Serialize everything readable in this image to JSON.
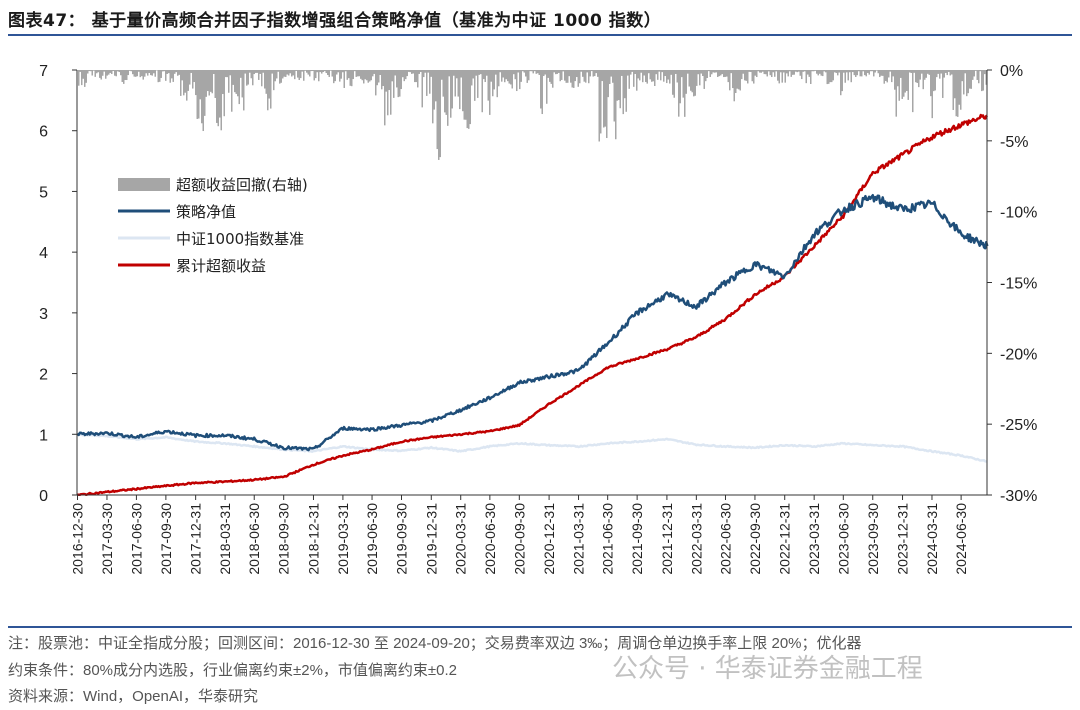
{
  "header": {
    "title": "图表47：  基于量价高频合并因子指数增强组合策略净值（基准为中证 1000 指数）"
  },
  "notes": {
    "line1": "注：股票池：中证全指成分股；回测区间：2016-12-30 至 2024-09-20；交易费率双边 3‰；周调仓单边换手率上限 20%；优化器",
    "line2": "约束条件：80%成分内选股，行业偏离约束±2%，市值偏离约束±0.2",
    "source": "资料来源：Wind，OpenAI，华泰研究",
    "watermark": "公众号 · 华泰证券金融工程"
  },
  "chart_data": {
    "type": "line",
    "title": "",
    "grid": false,
    "legend_position": "left",
    "y_left": {
      "range": [
        0,
        7
      ],
      "ticks": [
        "0",
        "1",
        "2",
        "3",
        "4",
        "5",
        "6",
        "7"
      ]
    },
    "y_right": {
      "range": [
        -30,
        0
      ],
      "unit": "%",
      "ticks": [
        "0%",
        "-5%",
        "-10%",
        "-15%",
        "-20%",
        "-25%",
        "-30%"
      ]
    },
    "x_ticks": [
      "2016-12-30",
      "2017-03-30",
      "2017-06-30",
      "2017-09-30",
      "2017-12-31",
      "2018-03-31",
      "2018-06-30",
      "2018-09-30",
      "2018-12-31",
      "2019-03-31",
      "2019-06-30",
      "2019-09-30",
      "2019-12-31",
      "2020-03-31",
      "2020-06-30",
      "2020-09-30",
      "2020-12-31",
      "2021-03-31",
      "2021-06-30",
      "2021-09-30",
      "2021-12-31",
      "2022-03-31",
      "2022-06-30",
      "2022-09-30",
      "2022-12-31",
      "2023-03-31",
      "2023-06-30",
      "2023-09-30",
      "2023-12-31",
      "2024-03-31",
      "2024-06-30"
    ],
    "x_end": "2024-09-20",
    "series": [
      {
        "name": "超额收益回撤(右轴)",
        "type": "area",
        "axis": "right",
        "color": "#a6a6a6",
        "frequency": "monthly",
        "start": "2017-01",
        "values": [
          -1.5,
          -0.5,
          -0.8,
          -0.5,
          -1,
          -0.5,
          -0.8,
          -0.5,
          -1,
          -1.5,
          -2.5,
          -2.5,
          -4.5,
          -2,
          -4.5,
          -3,
          -3,
          -1.5,
          -1.5,
          -3,
          -1,
          -0.5,
          -0.8,
          -0.5,
          -1,
          -0.5,
          -1,
          -1.5,
          -1,
          -1,
          -2,
          -4.5,
          -2,
          -1,
          -1.5,
          -3,
          -6.5,
          -4,
          -3,
          -4.5,
          -3,
          -5,
          -2,
          -1,
          -1.5,
          -1,
          -0.5,
          -3.5,
          -1.5,
          -1,
          -1.5,
          -1,
          -0.5,
          -5.5,
          -5,
          -3.5,
          -2,
          -1,
          -1.5,
          -1,
          -2,
          -3.5,
          -2,
          -1.5,
          -1,
          -0.5,
          -2.5,
          -1.5,
          -1,
          -1,
          -0.5,
          -1,
          -0.5,
          -0.8,
          -1,
          -0.5,
          -1,
          -2,
          -1,
          -0.5,
          -0.5,
          -0.5,
          -1,
          -3.5,
          -3,
          -1.5,
          -3.5,
          -1.5,
          -2,
          -3.8,
          -2,
          -1,
          -1.5
        ]
      },
      {
        "name": "策略净值",
        "type": "line",
        "axis": "left",
        "color": "#1f4e79",
        "values": [
          1.0,
          1.02,
          0.95,
          1.05,
          0.98,
          0.98,
          0.92,
          0.78,
          0.75,
          1.1,
          1.08,
          1.15,
          1.22,
          1.4,
          1.6,
          1.85,
          1.95,
          2.05,
          2.5,
          3.0,
          3.3,
          3.1,
          3.5,
          3.8,
          3.6,
          4.3,
          4.7,
          4.9,
          4.7,
          4.8,
          4.3,
          4.1
        ]
      },
      {
        "name": "中证1000指数基准",
        "type": "line",
        "axis": "left",
        "color": "#dce6f2",
        "values": [
          1.0,
          0.97,
          0.92,
          0.95,
          0.88,
          0.85,
          0.8,
          0.75,
          0.72,
          0.8,
          0.75,
          0.73,
          0.78,
          0.72,
          0.8,
          0.85,
          0.82,
          0.8,
          0.85,
          0.88,
          0.92,
          0.83,
          0.8,
          0.78,
          0.82,
          0.8,
          0.85,
          0.82,
          0.8,
          0.72,
          0.65,
          0.55
        ]
      },
      {
        "name": "累计超额收益",
        "type": "line",
        "axis": "left",
        "color": "#c00000",
        "values": [
          0,
          0.05,
          0.1,
          0.15,
          0.2,
          0.22,
          0.25,
          0.3,
          0.5,
          0.65,
          0.75,
          0.88,
          0.95,
          1.0,
          1.05,
          1.15,
          1.5,
          1.8,
          2.1,
          2.25,
          2.4,
          2.6,
          2.9,
          3.3,
          3.6,
          4.1,
          4.6,
          5.3,
          5.6,
          5.9,
          6.1,
          6.25
        ]
      }
    ]
  }
}
